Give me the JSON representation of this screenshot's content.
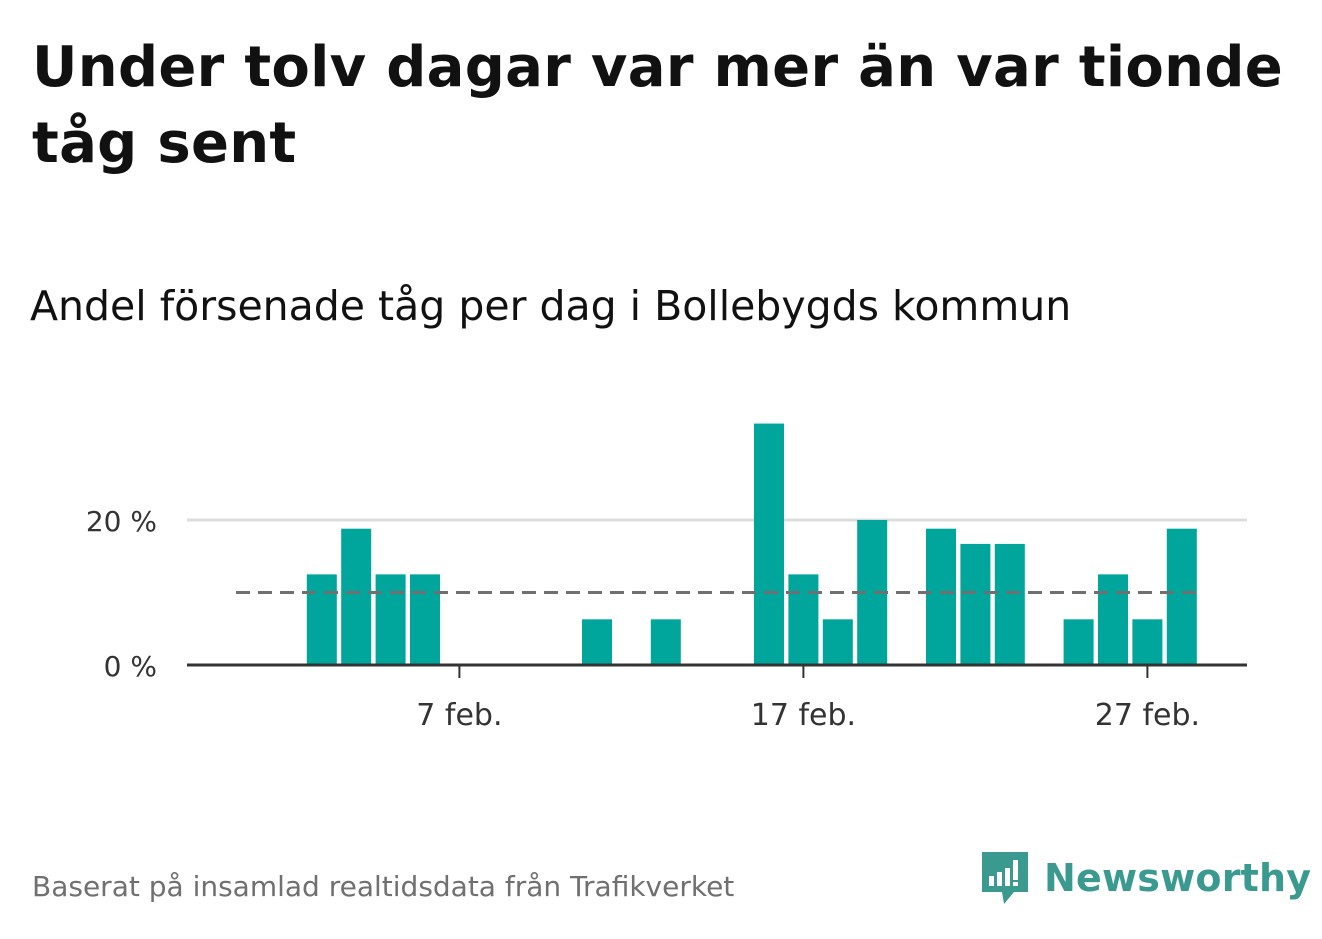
{
  "header": {
    "title": "Under tolv dagar var mer än var tionde tåg sent",
    "subtitle": "Andel försenade tåg per dag i Bollebygds kommun"
  },
  "footer": {
    "source": "Baserat på insamlad realtidsdata från Trafikverket",
    "brand": "Newsworthy",
    "brand_icon": "newsworthy-logo-icon"
  },
  "colors": {
    "bar": "#00a59b",
    "reference_line": "#707070",
    "grid": "#dddddd",
    "axis": "#333333",
    "brand": "#3a9a90"
  },
  "chart_data": {
    "type": "bar",
    "categories": [
      "1 feb.",
      "2 feb.",
      "3 feb.",
      "4 feb.",
      "5 feb.",
      "6 feb.",
      "7 feb.",
      "8 feb.",
      "9 feb.",
      "10 feb.",
      "11 feb.",
      "12 feb.",
      "13 feb.",
      "14 feb.",
      "15 feb.",
      "16 feb.",
      "17 feb.",
      "18 feb.",
      "19 feb.",
      "20 feb.",
      "21 feb.",
      "22 feb.",
      "23 feb.",
      "24 feb.",
      "25 feb.",
      "26 feb.",
      "27 feb.",
      "28 feb."
    ],
    "values": [
      0,
      0,
      12.5,
      18.8,
      12.5,
      12.5,
      0,
      0,
      0,
      0,
      6.3,
      0,
      6.3,
      0,
      0,
      33.3,
      12.5,
      6.3,
      20,
      0,
      18.8,
      16.7,
      16.7,
      0,
      6.3,
      12.5,
      6.3,
      18.8
    ],
    "unit": "%",
    "reference_line": 10,
    "ylim": [
      0,
      35
    ],
    "yticks": [
      0,
      20
    ],
    "ytick_labels": [
      "0 %",
      "20 %"
    ],
    "xticks": [
      "7 feb.",
      "17 feb.",
      "27 feb."
    ],
    "grid": true,
    "xlabel": "",
    "ylabel": ""
  }
}
